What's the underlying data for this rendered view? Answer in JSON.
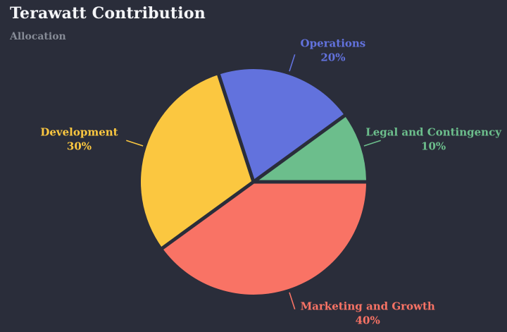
{
  "header": {
    "title": "Terawatt Contribution",
    "subtitle": "Allocation"
  },
  "theme": {
    "background": "#2a2d3a",
    "title_color": "#f4f5f8",
    "subtitle_color": "#868b96"
  },
  "chart_data": {
    "type": "pie",
    "title": "Terawatt Contribution",
    "subtitle": "Allocation",
    "labels": [
      "Legal and Contingency",
      "Operations",
      "Development",
      "Marketing and Growth"
    ],
    "values": [
      10,
      20,
      30,
      40
    ],
    "colors": [
      "#6cbe8c",
      "#6272dd",
      "#fbc740",
      "#f97365"
    ],
    "value_suffix": "%",
    "start_angle_deg": 0,
    "direction": "counterclockwise",
    "legend_position": "none",
    "slice_gap_color": "#2a2d3a"
  }
}
